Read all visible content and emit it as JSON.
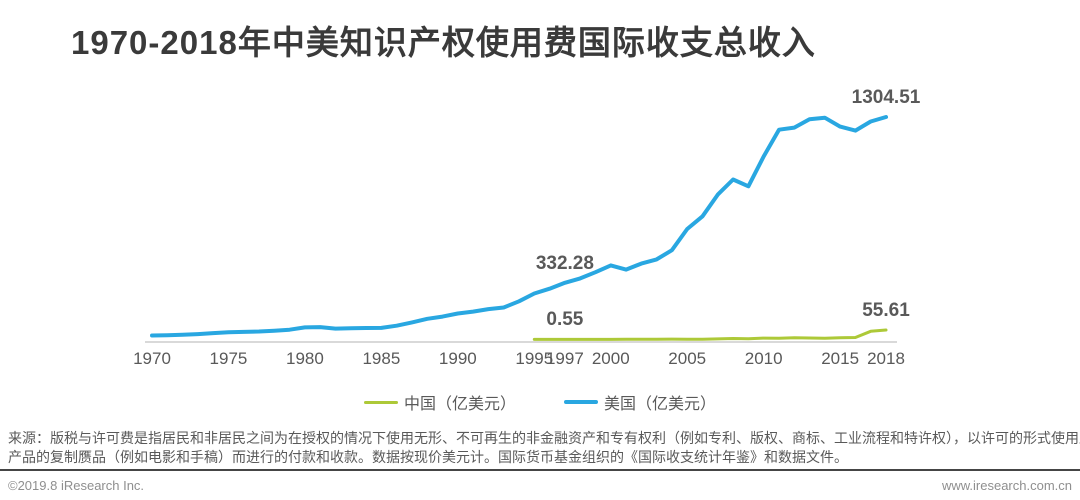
{
  "page": {
    "title": "1970-2018年中美知识产权使用费国际收支总收入",
    "source_note_line1": "来源：版税与许可费是指居民和非居民之间为在授权的情况下使用无形、不可再生的非金融资产和专有权利（例如专利、版权、商标、工业流程和特许权），以许可的形式使用原创",
    "source_note_line2": "产品的复制赝品（例如电影和手稿）而进行的付款和收款。数据按现价美元计。国际货币基金组织的《国际收支统计年鉴》和数据文件。",
    "copyright": "©2019.8 iResearch Inc.",
    "website": "www.iresearch.com.cn"
  },
  "chart_data": {
    "type": "line",
    "title": "1970-2018年中美知识产权使用费国际收支总收入",
    "ylabel": "亿美元",
    "ylim": [
      0,
      1400
    ],
    "grid": false,
    "legend_position": "bottom",
    "colors": {
      "china": "#adc938",
      "usa": "#29a7e1",
      "axis": "#d9d9d9"
    },
    "x": [
      1970,
      1971,
      1972,
      1973,
      1974,
      1975,
      1976,
      1977,
      1978,
      1979,
      1980,
      1981,
      1982,
      1983,
      1984,
      1985,
      1986,
      1987,
      1988,
      1989,
      1990,
      1991,
      1992,
      1993,
      1994,
      1995,
      1996,
      1997,
      1998,
      1999,
      2000,
      2001,
      2002,
      2003,
      2004,
      2005,
      2006,
      2007,
      2008,
      2009,
      2010,
      2011,
      2012,
      2013,
      2014,
      2015,
      2016,
      2017,
      2018
    ],
    "x_ticks": [
      "1970",
      "1975",
      "1980",
      "1985",
      "1990",
      "1995",
      "1997",
      "2000",
      "2005",
      "2010",
      "2015",
      "2018"
    ],
    "series": [
      {
        "name": "中国（亿美元）",
        "color": "#adc938",
        "values": [
          null,
          null,
          null,
          null,
          null,
          null,
          null,
          null,
          null,
          null,
          null,
          null,
          null,
          null,
          null,
          null,
          null,
          null,
          null,
          null,
          null,
          null,
          null,
          null,
          null,
          0.36,
          0.41,
          0.55,
          0.63,
          0.75,
          0.8,
          1.1,
          1.33,
          1.07,
          2.36,
          1.57,
          2.05,
          3.43,
          5.71,
          4.29,
          8.3,
          7.43,
          10.44,
          8.87,
          6.76,
          10.75,
          11.61,
          47.86,
          55.61
        ]
      },
      {
        "name": "美国（亿美元）",
        "color": "#29a7e1",
        "values": [
          23.3,
          25.5,
          27.7,
          31.9,
          37.8,
          42.7,
          44.3,
          46.8,
          51.5,
          57.7,
          70.9,
          72.8,
          64.1,
          65.7,
          67.5,
          67.8,
          81.1,
          100.3,
          121.4,
          134.0,
          152.3,
          163.6,
          178.4,
          187.4,
          224.1,
          269.7,
          297.6,
          332.28,
          358.1,
          394.5,
          434.5,
          409.6,
          445.1,
          469.4,
          523.5,
          648.0,
          722.1,
          849.4,
          937.9,
          898.0,
          1073.5,
          1230.3,
          1242.1,
          1291.8,
          1300.2,
          1248.4,
          1224.5,
          1278.3,
          1304.51
        ]
      }
    ],
    "annotations": [
      {
        "series": "美国（亿美元）",
        "year": 2018,
        "label": "1304.51"
      },
      {
        "series": "美国（亿美元）",
        "year": 1997,
        "label": "332.28"
      },
      {
        "series": "中国（亿美元）",
        "year": 1997,
        "label": "0.55"
      },
      {
        "series": "中国（亿美元）",
        "year": 2018,
        "label": "55.61"
      }
    ]
  }
}
